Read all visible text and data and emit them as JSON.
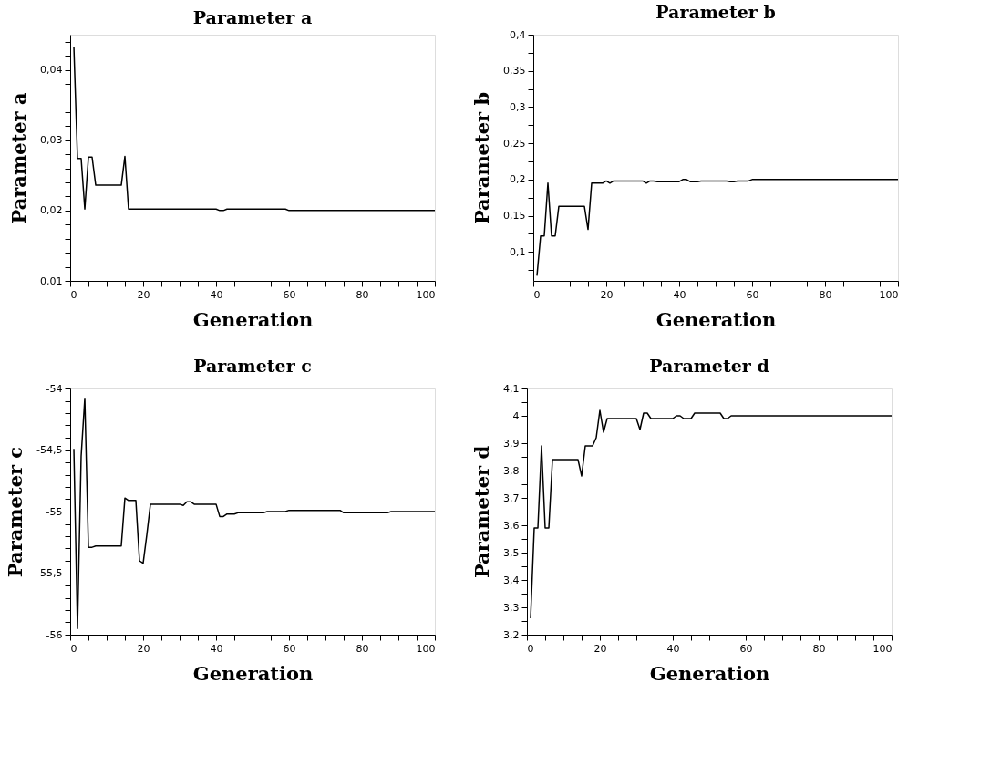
{
  "chart_data": [
    {
      "type": "line",
      "title": "Parameter a",
      "xlabel": "Generation",
      "ylabel": "Parameter a",
      "grid": false,
      "marker": "none",
      "line_style": "solid",
      "xlim": [
        0,
        100
      ],
      "ylim": [
        0.01,
        0.045
      ],
      "xticks": [
        0,
        {
          "value": 5,
          "label": null
        },
        {
          "value": 10,
          "label": null
        },
        {
          "value": 15,
          "label": null
        },
        20,
        {
          "value": 25,
          "label": null
        },
        {
          "value": 30,
          "label": null
        },
        {
          "value": 35,
          "label": null
        },
        40,
        {
          "value": 45,
          "label": null
        },
        {
          "value": 50,
          "label": null
        },
        {
          "value": 55,
          "label": null
        },
        60,
        {
          "value": 65,
          "label": null
        },
        {
          "value": 70,
          "label": null
        },
        {
          "value": 75,
          "label": null
        },
        80,
        {
          "value": 85,
          "label": null
        },
        {
          "value": 90,
          "label": null
        },
        {
          "value": 95,
          "label": null
        },
        100
      ],
      "yticks": [
        {
          "value": 0.01,
          "label": "0,01"
        },
        {
          "value": 0.012,
          "label": null
        },
        {
          "value": 0.014,
          "label": null
        },
        {
          "value": 0.016,
          "label": null
        },
        {
          "value": 0.018,
          "label": null
        },
        {
          "value": 0.02,
          "label": "0,02"
        },
        {
          "value": 0.022,
          "label": null
        },
        {
          "value": 0.024,
          "label": null
        },
        {
          "value": 0.026,
          "label": null
        },
        {
          "value": 0.028,
          "label": null
        },
        {
          "value": 0.03,
          "label": "0,03"
        },
        {
          "value": 0.032,
          "label": null
        },
        {
          "value": 0.034,
          "label": null
        },
        {
          "value": 0.036,
          "label": null
        },
        {
          "value": 0.038,
          "label": null
        },
        {
          "value": 0.04,
          "label": "0,04"
        },
        {
          "value": 0.042,
          "label": null
        },
        {
          "value": 0.044,
          "label": null
        }
      ],
      "series": [
        {
          "color": "#000000",
          "x": [
            1,
            2,
            3,
            4,
            5,
            6,
            7,
            14,
            15,
            16,
            40,
            41,
            42,
            43,
            59,
            60,
            100
          ],
          "values": [
            0.0433,
            0.0274,
            0.0274,
            0.0202,
            0.0276,
            0.0276,
            0.0236,
            0.0236,
            0.0277,
            0.0202,
            0.0202,
            0.02,
            0.02,
            0.0202,
            0.0202,
            0.02,
            0.02
          ]
        }
      ]
    },
    {
      "type": "line",
      "title": "Parameter b",
      "xlabel": "Generation",
      "ylabel": "Parameter b",
      "grid": false,
      "marker": "none",
      "line_style": "solid",
      "xlim": [
        0,
        100
      ],
      "ylim": [
        0.06,
        0.4
      ],
      "xticks": [
        0,
        {
          "value": 5,
          "label": null
        },
        {
          "value": 10,
          "label": null
        },
        {
          "value": 15,
          "label": null
        },
        20,
        {
          "value": 25,
          "label": null
        },
        {
          "value": 30,
          "label": null
        },
        {
          "value": 35,
          "label": null
        },
        40,
        {
          "value": 45,
          "label": null
        },
        {
          "value": 50,
          "label": null
        },
        {
          "value": 55,
          "label": null
        },
        60,
        {
          "value": 65,
          "label": null
        },
        {
          "value": 70,
          "label": null
        },
        {
          "value": 75,
          "label": null
        },
        80,
        {
          "value": 85,
          "label": null
        },
        {
          "value": 90,
          "label": null
        },
        {
          "value": 95,
          "label": null
        },
        100
      ],
      "yticks": [
        {
          "value": 0.075,
          "label": null
        },
        {
          "value": 0.1,
          "label": "0,1"
        },
        {
          "value": 0.125,
          "label": null
        },
        {
          "value": 0.15,
          "label": "0,15"
        },
        {
          "value": 0.175,
          "label": null
        },
        {
          "value": 0.2,
          "label": "0,2"
        },
        {
          "value": 0.225,
          "label": null
        },
        {
          "value": 0.25,
          "label": "0,25"
        },
        {
          "value": 0.275,
          "label": null
        },
        {
          "value": 0.3,
          "label": "0,3"
        },
        {
          "value": 0.325,
          "label": null
        },
        {
          "value": 0.35,
          "label": "0,35"
        },
        {
          "value": 0.375,
          "label": null
        },
        {
          "value": 0.4,
          "label": "0,4"
        }
      ],
      "series": [
        {
          "color": "#000000",
          "x": [
            1,
            2,
            3,
            4,
            5,
            6,
            7,
            14,
            15,
            16,
            19,
            20,
            21,
            22,
            30,
            31,
            32,
            33,
            34,
            40,
            41,
            42,
            43,
            45,
            46,
            53,
            54,
            55,
            56,
            59,
            60,
            100
          ],
          "values": [
            0.067,
            0.122,
            0.122,
            0.195,
            0.122,
            0.122,
            0.163,
            0.163,
            0.131,
            0.195,
            0.195,
            0.198,
            0.195,
            0.198,
            0.198,
            0.195,
            0.198,
            0.198,
            0.197,
            0.197,
            0.2,
            0.2,
            0.197,
            0.197,
            0.198,
            0.198,
            0.197,
            0.197,
            0.198,
            0.198,
            0.2,
            0.2
          ]
        }
      ]
    },
    {
      "type": "line",
      "title": "Parameter c",
      "xlabel": "Generation",
      "ylabel": "Parameter c",
      "grid": false,
      "marker": "none",
      "line_style": "solid",
      "xlim": [
        0,
        100
      ],
      "ylim": [
        -56,
        -54
      ],
      "xticks": [
        0,
        {
          "value": 5,
          "label": null
        },
        {
          "value": 10,
          "label": null
        },
        {
          "value": 15,
          "label": null
        },
        20,
        {
          "value": 25,
          "label": null
        },
        {
          "value": 30,
          "label": null
        },
        {
          "value": 35,
          "label": null
        },
        40,
        {
          "value": 45,
          "label": null
        },
        {
          "value": 50,
          "label": null
        },
        {
          "value": 55,
          "label": null
        },
        60,
        {
          "value": 65,
          "label": null
        },
        {
          "value": 70,
          "label": null
        },
        {
          "value": 75,
          "label": null
        },
        80,
        {
          "value": 85,
          "label": null
        },
        {
          "value": 90,
          "label": null
        },
        {
          "value": 95,
          "label": null
        },
        100
      ],
      "yticks": [
        -56,
        {
          "value": -55.9,
          "label": null
        },
        {
          "value": -55.8,
          "label": null
        },
        {
          "value": -55.7,
          "label": null
        },
        {
          "value": -55.6,
          "label": null
        },
        {
          "value": -55.5,
          "label": "-55,5"
        },
        {
          "value": -55.4,
          "label": null
        },
        {
          "value": -55.3,
          "label": null
        },
        {
          "value": -55.2,
          "label": null
        },
        {
          "value": -55.1,
          "label": null
        },
        -55,
        {
          "value": -54.9,
          "label": null
        },
        {
          "value": -54.8,
          "label": null
        },
        {
          "value": -54.7,
          "label": null
        },
        {
          "value": -54.6,
          "label": null
        },
        {
          "value": -54.5,
          "label": "-54,5"
        },
        {
          "value": -54.4,
          "label": null
        },
        {
          "value": -54.3,
          "label": null
        },
        {
          "value": -54.2,
          "label": null
        },
        {
          "value": -54.1,
          "label": null
        },
        -54
      ],
      "series": [
        {
          "color": "#000000",
          "x": [
            1,
            2,
            3,
            4,
            5,
            6,
            7,
            14,
            15,
            16,
            18,
            19,
            20,
            21,
            22,
            30,
            31,
            32,
            33,
            34,
            40,
            41,
            42,
            43,
            45,
            46,
            53,
            54,
            59,
            60,
            74,
            75,
            87,
            88,
            100
          ],
          "values": [
            -54.49,
            -55.95,
            -54.55,
            -54.08,
            -55.29,
            -55.29,
            -55.28,
            -55.28,
            -54.89,
            -54.91,
            -54.91,
            -55.4,
            -55.42,
            -55.19,
            -54.94,
            -54.94,
            -54.95,
            -54.92,
            -54.92,
            -54.94,
            -54.94,
            -55.04,
            -55.04,
            -55.02,
            -55.02,
            -55.01,
            -55.01,
            -55.0,
            -55.0,
            -54.99,
            -54.99,
            -55.01,
            -55.01,
            -55.0,
            -55.0
          ]
        }
      ]
    },
    {
      "type": "line",
      "title": "Parameter d",
      "xlabel": "Generation",
      "ylabel": "Parameter d",
      "grid": false,
      "marker": "none",
      "line_style": "solid",
      "xlim": [
        0,
        100
      ],
      "ylim": [
        3.2,
        4.1
      ],
      "xticks": [
        0,
        {
          "value": 5,
          "label": null
        },
        {
          "value": 10,
          "label": null
        },
        {
          "value": 15,
          "label": null
        },
        20,
        {
          "value": 25,
          "label": null
        },
        {
          "value": 30,
          "label": null
        },
        {
          "value": 35,
          "label": null
        },
        40,
        {
          "value": 45,
          "label": null
        },
        {
          "value": 50,
          "label": null
        },
        {
          "value": 55,
          "label": null
        },
        60,
        {
          "value": 65,
          "label": null
        },
        {
          "value": 70,
          "label": null
        },
        {
          "value": 75,
          "label": null
        },
        80,
        {
          "value": 85,
          "label": null
        },
        {
          "value": 90,
          "label": null
        },
        {
          "value": 95,
          "label": null
        },
        100
      ],
      "yticks": [
        {
          "value": 3.2,
          "label": "3,2"
        },
        {
          "value": 3.25,
          "label": null
        },
        {
          "value": 3.3,
          "label": "3,3"
        },
        {
          "value": 3.35,
          "label": null
        },
        {
          "value": 3.4,
          "label": "3,4"
        },
        {
          "value": 3.45,
          "label": null
        },
        {
          "value": 3.5,
          "label": "3,5"
        },
        {
          "value": 3.55,
          "label": null
        },
        {
          "value": 3.6,
          "label": "3,6"
        },
        {
          "value": 3.65,
          "label": null
        },
        {
          "value": 3.7,
          "label": "3,7"
        },
        {
          "value": 3.75,
          "label": null
        },
        {
          "value": 3.8,
          "label": "3,8"
        },
        {
          "value": 3.85,
          "label": null
        },
        {
          "value": 3.9,
          "label": "3,9"
        },
        {
          "value": 3.95,
          "label": null
        },
        4,
        {
          "value": 4.05,
          "label": null
        },
        {
          "value": 4.1,
          "label": "4,1"
        }
      ],
      "series": [
        {
          "color": "#000000",
          "x": [
            1,
            2,
            3,
            4,
            5,
            6,
            7,
            14,
            15,
            16,
            18,
            19,
            20,
            21,
            22,
            30,
            31,
            32,
            33,
            34,
            40,
            41,
            42,
            43,
            45,
            46,
            53,
            54,
            55,
            56,
            100
          ],
          "values": [
            3.26,
            3.59,
            3.59,
            3.89,
            3.59,
            3.59,
            3.84,
            3.84,
            3.78,
            3.89,
            3.89,
            3.92,
            4.02,
            3.94,
            3.99,
            3.99,
            3.95,
            4.01,
            4.01,
            3.99,
            3.99,
            4.0,
            4.0,
            3.99,
            3.99,
            4.01,
            4.01,
            3.99,
            3.99,
            4.0,
            4.0
          ]
        }
      ]
    }
  ]
}
